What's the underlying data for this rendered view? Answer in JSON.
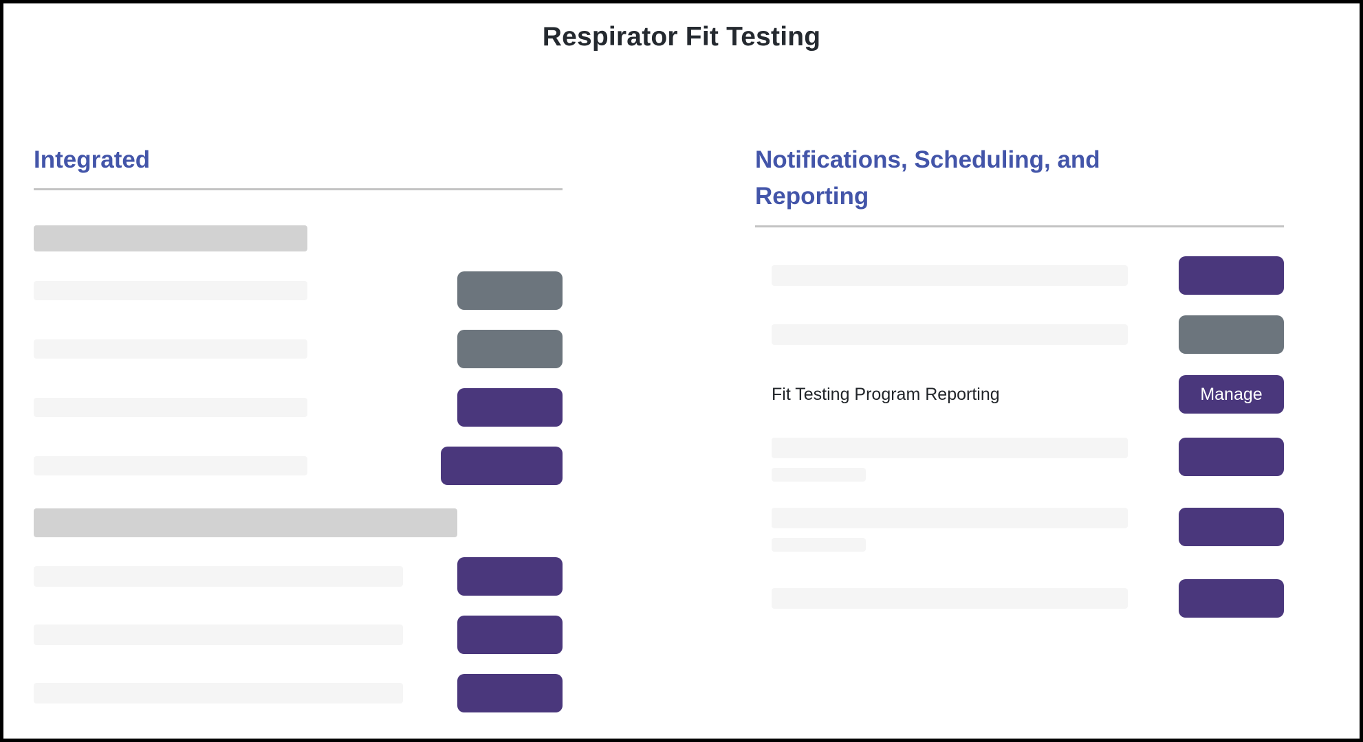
{
  "title": "Respirator Fit Testing",
  "colors": {
    "title_text": "#24292f",
    "heading": "#4355a9",
    "purple": "#4a377c",
    "gray": "#6c757d",
    "bar_light": "#f5f5f5",
    "bar_dark": "#d2d2d2",
    "divider": "#c3c3c3"
  },
  "left_section": {
    "heading": "Integrated",
    "items": [
      {
        "kind": "header-bar",
        "size": "sm"
      },
      {
        "kind": "row",
        "bar": "narrow",
        "button": {
          "variant": "gray",
          "label": ""
        }
      },
      {
        "kind": "row",
        "bar": "narrow",
        "button": {
          "variant": "gray",
          "label": ""
        }
      },
      {
        "kind": "row",
        "bar": "narrow",
        "button": {
          "variant": "purple",
          "label": ""
        }
      },
      {
        "kind": "row",
        "bar": "narrow",
        "button": {
          "variant": "purple",
          "label": "",
          "wide": true
        }
      },
      {
        "kind": "header-bar",
        "size": "lg"
      },
      {
        "kind": "row",
        "bar": "wide",
        "button": {
          "variant": "purple",
          "label": ""
        }
      },
      {
        "kind": "row",
        "bar": "wide",
        "button": {
          "variant": "purple",
          "label": ""
        }
      },
      {
        "kind": "row",
        "bar": "wide",
        "button": {
          "variant": "purple",
          "label": ""
        }
      }
    ]
  },
  "right_section": {
    "heading": "Notifications, Scheduling, and Reporting",
    "rows": [
      {
        "placeholder": true,
        "two_line": false,
        "button": {
          "variant": "purple",
          "label": ""
        }
      },
      {
        "placeholder": true,
        "two_line": false,
        "button": {
          "variant": "gray",
          "label": ""
        }
      },
      {
        "placeholder": false,
        "label": "Fit Testing Program Reporting",
        "button": {
          "variant": "purple",
          "label": "Manage",
          "name": "manage-button"
        }
      },
      {
        "placeholder": true,
        "two_line": true,
        "button": {
          "variant": "purple",
          "label": ""
        }
      },
      {
        "placeholder": true,
        "two_line": true,
        "button": {
          "variant": "purple",
          "label": ""
        }
      },
      {
        "placeholder": true,
        "two_line": false,
        "button": {
          "variant": "purple",
          "label": ""
        }
      }
    ]
  }
}
